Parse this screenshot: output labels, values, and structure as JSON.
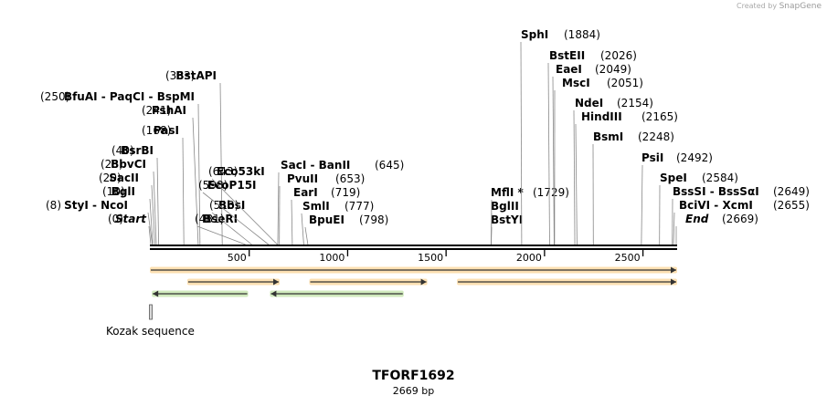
{
  "watermark": {
    "prefix": "Created by",
    "brand": "SnapGene"
  },
  "map": {
    "name": "TFORF1692",
    "length_label": "2669 bp",
    "length": 2669
  },
  "ticks": [
    500,
    1000,
    1500,
    2000,
    2500
  ],
  "sites": [
    {
      "label": "Start",
      "pos": 0,
      "pos_label": "(0)",
      "italic": true
    },
    {
      "label": "StyI  -  NcoI",
      "pos": 8,
      "pos_label": "(8)"
    },
    {
      "label": "BglI",
      "pos": 10,
      "pos_label": "(10)"
    },
    {
      "label": "SacII",
      "pos": 20,
      "pos_label": "(20)"
    },
    {
      "label": "BbvCI",
      "pos": 28,
      "pos_label": "(28)"
    },
    {
      "label": "BsrBI",
      "pos": 40,
      "pos_label": "(40)"
    },
    {
      "label": "PasI",
      "pos": 168,
      "pos_label": "(168)"
    },
    {
      "label": "PshAI",
      "pos": 241,
      "pos_label": "(241)"
    },
    {
      "label": "BfuAI  -  PaqCI  -  BspMI",
      "pos": 250,
      "pos_label": "(250)"
    },
    {
      "label": "BstAPI",
      "pos": 363,
      "pos_label": "(363)"
    },
    {
      "label": "BseRI",
      "pos": 481,
      "pos_label": "(481)"
    },
    {
      "label": "BbsI",
      "pos": 513,
      "pos_label": "(513)"
    },
    {
      "label": "EcoP15I",
      "pos": 598,
      "pos_label": "(598)"
    },
    {
      "label": "Eco53kI",
      "pos": 643,
      "pos_label": "(643)"
    },
    {
      "label": "SacI  -  BanII",
      "pos": 645,
      "pos_label": "(645)"
    },
    {
      "label": "PvuII",
      "pos": 653,
      "pos_label": "(653)"
    },
    {
      "label": "EarI",
      "pos": 719,
      "pos_label": "(719)"
    },
    {
      "label": "SmlI",
      "pos": 777,
      "pos_label": "(777)"
    },
    {
      "label": "BpuEI",
      "pos": 798,
      "pos_label": "(798)"
    },
    {
      "label": "BstYI",
      "pos": 1729,
      "pos_label": ""
    },
    {
      "label": "BglII",
      "pos": 1729,
      "pos_label": ""
    },
    {
      "label": "MflI *",
      "pos": 1729,
      "pos_label": "(1729)"
    },
    {
      "label": "SphI",
      "pos": 1884,
      "pos_label": "(1884)"
    },
    {
      "label": "BstEII",
      "pos": 2026,
      "pos_label": "(2026)"
    },
    {
      "label": "EaeI",
      "pos": 2049,
      "pos_label": "(2049)"
    },
    {
      "label": "MscI",
      "pos": 2051,
      "pos_label": "(2051)"
    },
    {
      "label": "NdeI",
      "pos": 2154,
      "pos_label": "(2154)"
    },
    {
      "label": "HindIII",
      "pos": 2165,
      "pos_label": "(2165)"
    },
    {
      "label": "BsmI",
      "pos": 2248,
      "pos_label": "(2248)"
    },
    {
      "label": "PsiI",
      "pos": 2492,
      "pos_label": "(2492)"
    },
    {
      "label": "SpeI",
      "pos": 2584,
      "pos_label": "(2584)"
    },
    {
      "label": "BssSI  -  BssSαI",
      "pos": 2649,
      "pos_label": "(2649)"
    },
    {
      "label": "BciVI  -  XcmI",
      "pos": 2655,
      "pos_label": "(2655)"
    },
    {
      "label": "End",
      "pos": 2669,
      "pos_label": "(2669)",
      "italic": true
    }
  ],
  "features": [
    {
      "start": 0,
      "end": 2669,
      "direction": "forward",
      "color": "#f5a623"
    },
    {
      "start": 190,
      "end": 650,
      "direction": "forward",
      "color": "#f5a623"
    },
    {
      "start": 810,
      "end": 1400,
      "direction": "forward",
      "color": "#f5a623"
    },
    {
      "start": 1560,
      "end": 2669,
      "direction": "forward",
      "color": "#f5a623"
    },
    {
      "start": 10,
      "end": 490,
      "direction": "reverse",
      "color": "#7cc242"
    },
    {
      "start": 610,
      "end": 1280,
      "direction": "reverse",
      "color": "#7cc242"
    }
  ],
  "kozak": {
    "label": "Kozak sequence",
    "pos": 0
  }
}
